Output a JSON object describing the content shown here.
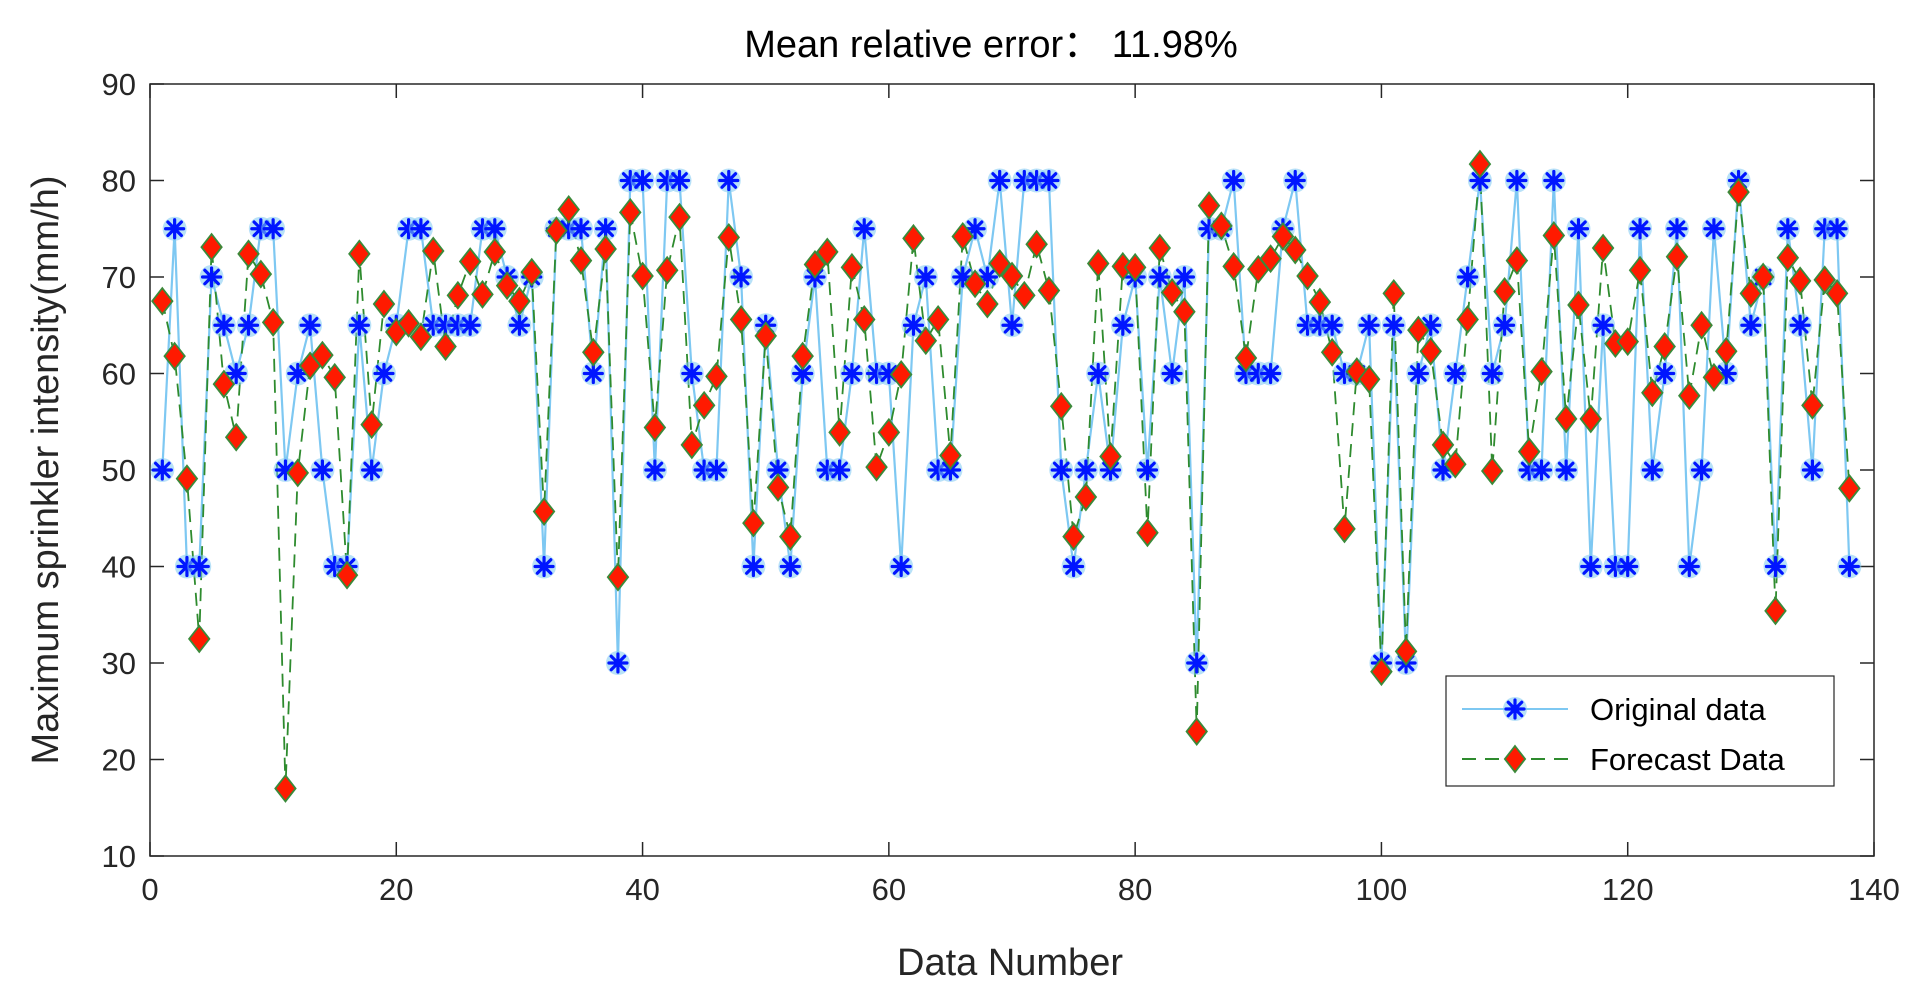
{
  "chart_data": {
    "type": "line",
    "title": "Mean relative error： 11.98%",
    "xlabel": "Data Number",
    "ylabel": "Maximum sprinkler intensity(mm/h)",
    "xlim": [
      0,
      140
    ],
    "ylim": [
      10,
      90
    ],
    "xticks": [
      0,
      20,
      40,
      60,
      80,
      100,
      120,
      140
    ],
    "yticks": [
      10,
      20,
      30,
      40,
      50,
      60,
      70,
      80,
      90
    ],
    "grid": false,
    "legend_position": "bottom-right",
    "colors": {
      "original_line": "#7ec8f2",
      "original_marker": "#0015ff",
      "forecast_line": "#2e8b2e",
      "forecast_marker": "#ff1a00"
    },
    "series": [
      {
        "name": "Original data",
        "style": "solid-star",
        "x": [
          1,
          2,
          3,
          4,
          5,
          6,
          7,
          8,
          9,
          10,
          11,
          12,
          13,
          14,
          15,
          16,
          17,
          18,
          19,
          20,
          21,
          22,
          23,
          24,
          25,
          26,
          27,
          28,
          29,
          30,
          31,
          32,
          33,
          34,
          35,
          36,
          37,
          38,
          39,
          40,
          41,
          42,
          43,
          44,
          45,
          46,
          47,
          48,
          49,
          50,
          51,
          52,
          53,
          54,
          55,
          56,
          57,
          58,
          59,
          60,
          61,
          62,
          63,
          64,
          65,
          66,
          67,
          68,
          69,
          70,
          71,
          72,
          73,
          74,
          75,
          76,
          77,
          78,
          79,
          80,
          81,
          82,
          83,
          84,
          85,
          86,
          87,
          88,
          89,
          90,
          91,
          92,
          93,
          94,
          95,
          96,
          97,
          98,
          99,
          100,
          101,
          102,
          103,
          104,
          105,
          106,
          107,
          108,
          109,
          110,
          111,
          112,
          113,
          114,
          115,
          116,
          117,
          118,
          119,
          120,
          121,
          122,
          123,
          124,
          125,
          126,
          127,
          128,
          129,
          130,
          131,
          132,
          133,
          134,
          135,
          136,
          137,
          138
        ],
        "values": [
          50,
          75,
          40,
          40,
          70,
          65,
          60,
          65,
          75,
          75,
          50,
          60,
          65,
          50,
          40,
          40,
          65,
          50,
          60,
          65,
          75,
          75,
          65,
          65,
          65,
          65,
          75,
          75,
          70,
          65,
          70,
          40,
          75,
          75,
          75,
          60,
          75,
          30,
          80,
          80,
          50,
          80,
          80,
          60,
          50,
          50,
          80,
          70,
          40,
          65,
          50,
          40,
          60,
          70,
          50,
          50,
          60,
          75,
          60,
          60,
          40,
          65,
          70,
          50,
          50,
          70,
          75,
          70,
          80,
          65,
          80,
          80,
          80,
          50,
          40,
          50,
          60,
          50,
          65,
          70,
          50,
          70,
          60,
          70,
          30,
          75,
          75,
          80,
          60,
          60,
          60,
          75,
          80,
          65,
          65,
          65,
          60,
          60,
          65,
          30,
          65,
          30,
          60,
          65,
          50,
          60,
          70,
          80,
          60,
          65,
          80,
          50,
          50,
          80,
          50,
          75,
          40,
          65,
          40,
          40,
          75,
          50,
          60,
          75,
          40,
          50,
          75,
          60,
          80,
          65,
          70,
          40,
          75,
          65,
          50,
          75,
          75,
          40
        ]
      },
      {
        "name": "Forecast Data",
        "style": "dashed-diamond",
        "x": [
          1,
          2,
          3,
          4,
          5,
          6,
          7,
          8,
          9,
          10,
          11,
          12,
          13,
          14,
          15,
          16,
          17,
          18,
          19,
          20,
          21,
          22,
          23,
          24,
          25,
          26,
          27,
          28,
          29,
          30,
          31,
          32,
          33,
          34,
          35,
          36,
          37,
          38,
          39,
          40,
          41,
          42,
          43,
          44,
          45,
          46,
          47,
          48,
          49,
          50,
          51,
          52,
          53,
          54,
          55,
          56,
          57,
          58,
          59,
          60,
          61,
          62,
          63,
          64,
          65,
          66,
          67,
          68,
          69,
          70,
          71,
          72,
          73,
          74,
          75,
          76,
          77,
          78,
          79,
          80,
          81,
          82,
          83,
          84,
          85,
          86,
          87,
          88,
          89,
          90,
          91,
          92,
          93,
          94,
          95,
          96,
          97,
          98,
          99,
          100,
          101,
          102,
          103,
          104,
          105,
          106,
          107,
          108,
          109,
          110,
          111,
          112,
          113,
          114,
          115,
          116,
          117,
          118,
          119,
          120,
          121,
          122,
          123,
          124,
          125,
          126,
          127,
          128,
          129,
          130,
          131,
          132,
          133,
          134,
          135,
          136,
          137,
          138
        ],
        "values": [
          67.5,
          61.8,
          49.1,
          32.5,
          73.1,
          58.9,
          53.4,
          72.4,
          70.3,
          65.3,
          17.0,
          49.7,
          60.8,
          61.9,
          59.6,
          39.1,
          72.4,
          54.7,
          67.2,
          64.3,
          65.2,
          63.8,
          72.7,
          62.8,
          68.1,
          71.6,
          68.2,
          72.6,
          69.1,
          67.5,
          70.5,
          45.7,
          74.8,
          77.0,
          71.7,
          62.2,
          72.9,
          38.9,
          76.7,
          70.1,
          54.4,
          70.7,
          76.2,
          52.6,
          56.7,
          59.7,
          74.1,
          65.6,
          44.5,
          63.9,
          48.2,
          43.1,
          61.8,
          71.3,
          72.6,
          53.9,
          71.0,
          65.6,
          50.3,
          53.9,
          59.9,
          74.0,
          63.4,
          65.6,
          51.5,
          74.2,
          69.3,
          67.2,
          71.4,
          70.1,
          68.1,
          73.4,
          68.6,
          56.6,
          43.1,
          47.2,
          71.4,
          51.4,
          71.1,
          71.0,
          43.5,
          73.0,
          68.4,
          66.4,
          22.9,
          77.4,
          75.3,
          71.1,
          61.6,
          70.8,
          71.9,
          74.2,
          72.8,
          70.1,
          67.4,
          62.2,
          43.9,
          60.2,
          59.4,
          29.1,
          68.3,
          31.2,
          64.5,
          62.3,
          52.6,
          50.6,
          65.6,
          81.7,
          49.9,
          68.5,
          71.7,
          51.9,
          60.2,
          74.3,
          55.3,
          67.1,
          55.3,
          73.0,
          63.1,
          63.3,
          70.7,
          58.0,
          62.8,
          72.1,
          57.7,
          65.0,
          59.6,
          62.3,
          78.8,
          68.3,
          70.0,
          35.4,
          72.0,
          69.6,
          56.7,
          69.7,
          68.3,
          48.1
        ]
      }
    ]
  }
}
